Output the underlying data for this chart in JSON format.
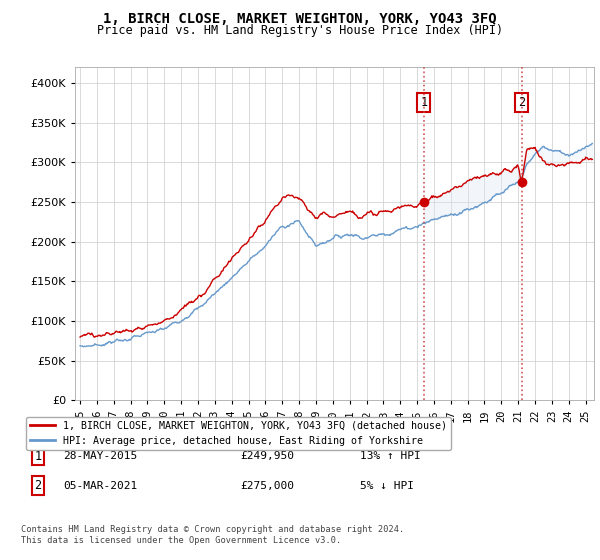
{
  "title": "1, BIRCH CLOSE, MARKET WEIGHTON, YORK, YO43 3FQ",
  "subtitle": "Price paid vs. HM Land Registry's House Price Index (HPI)",
  "red_label": "1, BIRCH CLOSE, MARKET WEIGHTON, YORK, YO43 3FQ (detached house)",
  "blue_label": "HPI: Average price, detached house, East Riding of Yorkshire",
  "annotation1": {
    "num": "1",
    "date": "28-MAY-2015",
    "price": "£249,950",
    "pct": "13% ↑ HPI",
    "x": 2015.4
  },
  "annotation2": {
    "num": "2",
    "date": "05-MAR-2021",
    "price": "£275,000",
    "pct": "5% ↓ HPI",
    "x": 2021.2
  },
  "footer": "Contains HM Land Registry data © Crown copyright and database right 2024.\nThis data is licensed under the Open Government Licence v3.0.",
  "ylim": [
    0,
    420000
  ],
  "yticks": [
    0,
    50000,
    100000,
    150000,
    200000,
    250000,
    300000,
    350000,
    400000
  ],
  "background_color": "#e8f0f8",
  "plot_bg": "#ffffff",
  "shade_color": "#dce8f5",
  "red_color": "#cc0000",
  "blue_color": "#6699cc",
  "grid_color": "#cccccc",
  "xlim_start": 1994.7,
  "xlim_end": 2025.5
}
